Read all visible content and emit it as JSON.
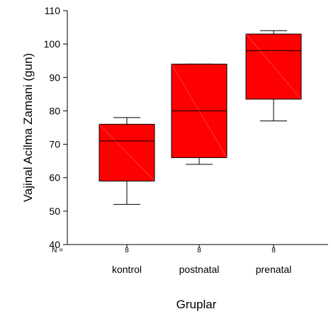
{
  "chart_data": {
    "type": "box",
    "xlabel": "Gruplar",
    "ylabel": "Vajinal Acilma Zamani (gun)",
    "ylim": [
      40,
      110
    ],
    "yticks": [
      40,
      50,
      60,
      70,
      80,
      90,
      100,
      110
    ],
    "n_label": "N =",
    "fill_color": "#ff0000",
    "categories": [
      "kontrol",
      "postnatal",
      "prenatal"
    ],
    "n_values": [
      "8",
      "8",
      "8"
    ],
    "boxes": [
      {
        "name": "kontrol",
        "whisker_low": 52,
        "q1": 59,
        "median": 71,
        "q3": 76,
        "whisker_high": 78
      },
      {
        "name": "postnatal",
        "whisker_low": 64,
        "q1": 66,
        "median": 80,
        "q3": 94,
        "whisker_high": 94
      },
      {
        "name": "prenatal",
        "whisker_low": 77,
        "q1": 83.5,
        "median": 98,
        "q3": 103,
        "whisker_high": 104
      }
    ]
  }
}
